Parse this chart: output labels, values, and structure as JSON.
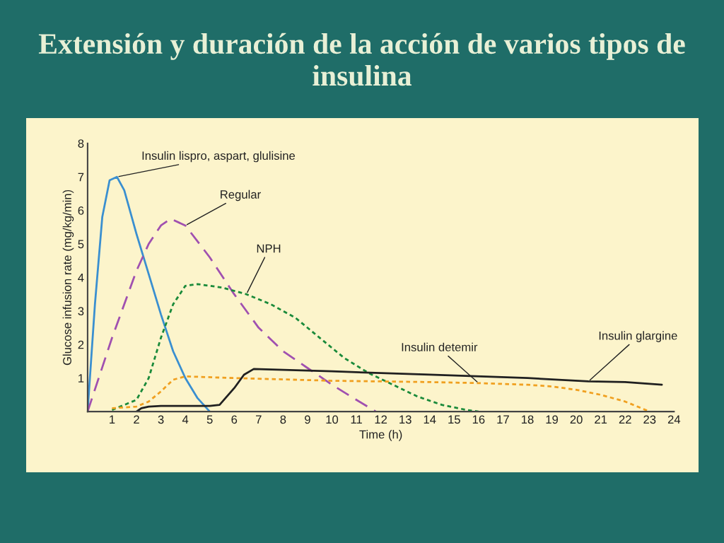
{
  "chart_data": {
    "type": "line",
    "title": "Extensión y duración de la acción de varios tipos de insulina",
    "xlabel": "Time (h)",
    "ylabel": "Glucose infusion rate (mg/kg/min)",
    "xlim": [
      0,
      24
    ],
    "xticks": [
      1,
      2,
      3,
      4,
      5,
      6,
      7,
      8,
      9,
      10,
      11,
      12,
      13,
      14,
      15,
      16,
      17,
      18,
      19,
      20,
      21,
      22,
      23,
      24
    ],
    "ylim": [
      0,
      8
    ],
    "yticks": [
      1,
      2,
      3,
      4,
      5,
      6,
      7,
      8
    ],
    "grid": false,
    "legend": false,
    "marker": "none",
    "series": [
      {
        "name": "Insulin lispro, aspart, glulisine",
        "color": "#3a8fd0",
        "line_style": "solid",
        "x": [
          0,
          0.3,
          0.6,
          0.9,
          1.2,
          1.5,
          2,
          2.5,
          3,
          3.5,
          4,
          4.5,
          5
        ],
        "values": [
          0,
          3.2,
          5.8,
          6.9,
          7.0,
          6.6,
          5.3,
          4.1,
          2.9,
          1.8,
          1.0,
          0.4,
          0
        ]
      },
      {
        "name": "Regular",
        "color": "#a050b0",
        "line_style": "dashed",
        "x": [
          0,
          1,
          2,
          2.5,
          3,
          3.4,
          4,
          5,
          6,
          7,
          8,
          9,
          10,
          11,
          11.8
        ],
        "values": [
          0,
          2.2,
          4.2,
          5.0,
          5.55,
          5.75,
          5.55,
          4.6,
          3.5,
          2.5,
          1.8,
          1.3,
          0.8,
          0.35,
          0
        ]
      },
      {
        "name": "NPH",
        "color": "#1a8a3a",
        "line_style": "dotted",
        "x": [
          1,
          2,
          2.5,
          3,
          3.5,
          4,
          4.5,
          5.5,
          6.5,
          7.5,
          8.5,
          9.5,
          10.5,
          11.5,
          12.5,
          13.5,
          14.5,
          15.5,
          16
        ],
        "values": [
          0.05,
          0.35,
          1.0,
          2.2,
          3.2,
          3.75,
          3.8,
          3.7,
          3.5,
          3.2,
          2.8,
          2.2,
          1.6,
          1.15,
          0.8,
          0.45,
          0.2,
          0.05,
          0
        ]
      },
      {
        "name": "Insulin detemir",
        "color": "#f0a020",
        "line_style": "dotted",
        "x": [
          1,
          2,
          2.5,
          3,
          3.5,
          4,
          6,
          10,
          14,
          16,
          18,
          19,
          20,
          21,
          22,
          22.5,
          23
        ],
        "values": [
          0.1,
          0.15,
          0.3,
          0.6,
          0.95,
          1.05,
          1.0,
          0.92,
          0.88,
          0.85,
          0.8,
          0.75,
          0.65,
          0.5,
          0.3,
          0.15,
          0
        ]
      },
      {
        "name": "Insulin glargine",
        "color": "#202020",
        "line_style": "solid",
        "x": [
          2,
          2.2,
          2.5,
          3,
          5,
          5.4,
          6,
          6.4,
          6.8,
          10,
          14,
          18,
          20.5,
          22,
          23.5
        ],
        "values": [
          0,
          0.1,
          0.15,
          0.17,
          0.17,
          0.2,
          0.7,
          1.1,
          1.27,
          1.2,
          1.1,
          1.0,
          0.9,
          0.88,
          0.8
        ]
      }
    ]
  }
}
